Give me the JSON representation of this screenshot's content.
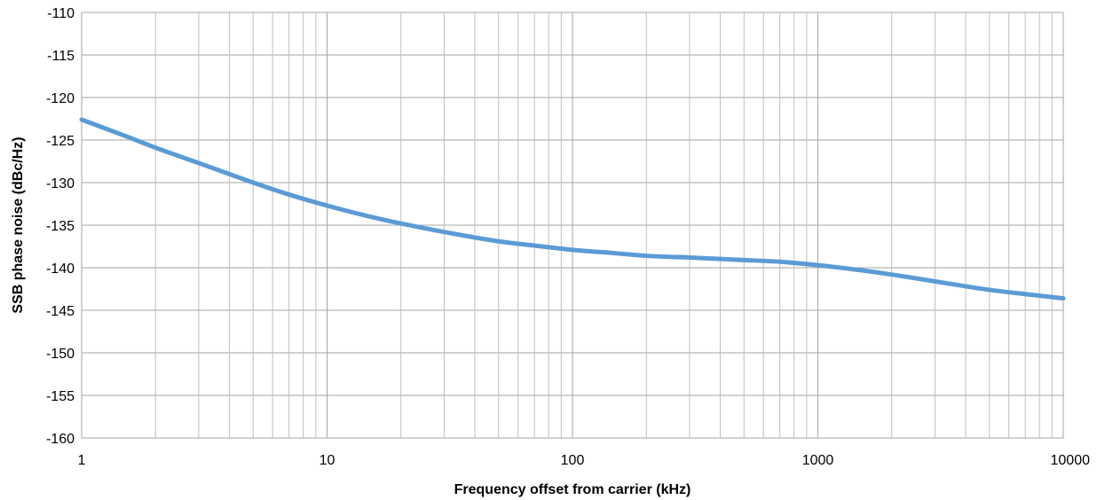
{
  "chart_data": {
    "type": "line",
    "xlabel": "Frequency offset from carrier (kHz)",
    "ylabel": "SSB phase noise (dBc/Hz)",
    "x_scale": "log",
    "xlim": [
      1,
      10000
    ],
    "ylim": [
      -160,
      -110
    ],
    "x_ticks": [
      "1",
      "10",
      "100",
      "1000",
      "10000"
    ],
    "y_ticks": [
      "-110",
      "-115",
      "-120",
      "-125",
      "-130",
      "-135",
      "-140",
      "-145",
      "-150",
      "-155",
      "-160"
    ],
    "grid": true,
    "line_color": "#5b9bd5",
    "series": [
      {
        "x": [
          1,
          1.5,
          2,
          3,
          4,
          5,
          7,
          10,
          15,
          20,
          30,
          50,
          70,
          100,
          150,
          200,
          300,
          500,
          700,
          1000,
          1500,
          2000,
          3000,
          5000,
          7000,
          10000
        ],
        "values": [
          -122.6,
          -124.5,
          -125.9,
          -127.7,
          -129.0,
          -130.0,
          -131.4,
          -132.7,
          -134.0,
          -134.8,
          -135.8,
          -136.9,
          -137.4,
          -137.9,
          -138.3,
          -138.6,
          -138.8,
          -139.1,
          -139.3,
          -139.7,
          -140.3,
          -140.8,
          -141.6,
          -142.6,
          -143.1,
          -143.6
        ]
      }
    ]
  }
}
